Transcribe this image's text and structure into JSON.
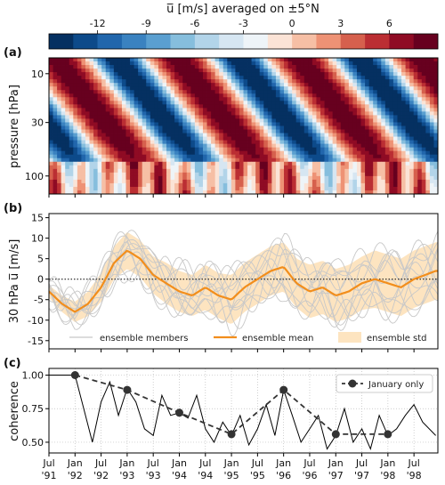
{
  "colorbar": {
    "title": "u̅ [m/s] averaged on ±5°N",
    "ticks": [
      "-12",
      "-9",
      "-6",
      "-3",
      "0",
      "3",
      "6"
    ],
    "tick_values": [
      -12,
      -9,
      -6,
      -3,
      0,
      3,
      6
    ],
    "levels": [
      -15,
      -13.5,
      -12,
      -10.5,
      -9,
      -7.5,
      -6,
      -4.5,
      -3,
      -1.5,
      0,
      1.5,
      3,
      4.5,
      6,
      7.5,
      9
    ],
    "colors": [
      "#053061",
      "#0d4a8a",
      "#2166ac",
      "#3a82c0",
      "#5a9fd0",
      "#86bedd",
      "#b2d4e9",
      "#d6e6f2",
      "#eef4f8",
      "#fbe3d6",
      "#f6bfa5",
      "#ee9275",
      "#d6604d",
      "#bb2e33",
      "#8f0b24",
      "#67001f"
    ]
  },
  "panels": {
    "a": {
      "label": "(a)",
      "ylabel": "pressure [hPa]",
      "yticks": [
        "10",
        "30",
        "100"
      ],
      "ytick_values": [
        10,
        30,
        100
      ]
    },
    "b": {
      "label": "(b)",
      "ylabel": "30 hPa u̅ [m/s]",
      "yticks": [
        "15",
        "10",
        "5",
        "0",
        "-5",
        "-10",
        "-15"
      ],
      "ytick_values": [
        15,
        10,
        5,
        0,
        -5,
        -10,
        -15
      ]
    },
    "c": {
      "label": "(c)",
      "ylabel": "coherence",
      "yticks": [
        "1.00",
        "0.75",
        "0.50"
      ],
      "ytick_values": [
        1.0,
        0.75,
        0.5
      ]
    }
  },
  "legend_b": {
    "members": "ensemble members",
    "mean": "ensemble mean",
    "std": "ensemble std"
  },
  "legend_c": {
    "january": "January only"
  },
  "xaxis": {
    "ticks": [
      {
        "top": "Jul",
        "bottom": "'91"
      },
      {
        "top": "Jan",
        "bottom": "'92"
      },
      {
        "top": "Jul",
        "bottom": "'92"
      },
      {
        "top": "Jan",
        "bottom": "'93"
      },
      {
        "top": "Jul",
        "bottom": "'93"
      },
      {
        "top": "Jan",
        "bottom": "'94"
      },
      {
        "top": "Jul",
        "bottom": "'94"
      },
      {
        "top": "Jan",
        "bottom": "'95"
      },
      {
        "top": "Jul",
        "bottom": "'95"
      },
      {
        "top": "Jan",
        "bottom": "'96"
      },
      {
        "top": "Jul",
        "bottom": "'96"
      },
      {
        "top": "Jan",
        "bottom": "'97"
      },
      {
        "top": "Jul",
        "bottom": "'97"
      },
      {
        "top": "Jan",
        "bottom": "'98"
      },
      {
        "top": "Jul",
        "bottom": "'98"
      }
    ]
  },
  "colors": {
    "mean": "#f28e1c",
    "std": "#fde4c0",
    "members": "#c8c8c8",
    "coherence": "#000000",
    "january": "#333333"
  },
  "chart_data": [
    {
      "type": "heatmap",
      "panel": "a",
      "title": "u̅ [m/s] averaged on ±5°N",
      "ylabel": "pressure [hPa]",
      "ylim": [
        150,
        7
      ],
      "yscale": "log",
      "xlim": [
        "1991-07",
        "1998-12"
      ],
      "description_of_values": "zonal wind, colour levels as in colorbar",
      "qbo_period_months": 28
    },
    {
      "type": "line",
      "panel": "b",
      "ylabel": "30 hPa u̅ [m/s]",
      "ylim": [
        -17,
        16
      ],
      "xlim": [
        "1991-07",
        "1998-12"
      ],
      "x": [
        "1991-07",
        "1991-10",
        "1992-01",
        "1992-04",
        "1992-07",
        "1992-10",
        "1993-01",
        "1993-04",
        "1993-07",
        "1993-10",
        "1994-01",
        "1994-04",
        "1994-07",
        "1994-10",
        "1995-01",
        "1995-04",
        "1995-07",
        "1995-10",
        "1996-01",
        "1996-04",
        "1996-07",
        "1996-10",
        "1997-01",
        "1997-04",
        "1997-07",
        "1997-10",
        "1998-01",
        "1998-04",
        "1998-07",
        "1998-12"
      ],
      "series": [
        {
          "name": "ensemble mean",
          "values": [
            -3,
            -6,
            -8,
            -6,
            -2,
            4,
            7,
            5,
            1,
            -1,
            -3,
            -4,
            -2,
            -4,
            -5,
            -2,
            0,
            2,
            3,
            -1,
            -3,
            -2,
            -4,
            -3,
            -1,
            0,
            -1,
            -2,
            0,
            2
          ]
        },
        {
          "name": "ensemble std",
          "values": [
            1.5,
            2,
            2.5,
            3,
            3.5,
            4,
            4.5,
            4.5,
            4.5,
            5,
            5,
            5,
            5.5,
            5.5,
            6,
            6,
            6,
            6,
            6,
            6,
            6.5,
            6.5,
            6.5,
            6.5,
            6.5,
            7,
            7,
            7,
            7,
            7
          ]
        }
      ],
      "hline": 0
    },
    {
      "type": "line",
      "panel": "c",
      "ylabel": "coherence",
      "ylim": [
        0.42,
        1.05
      ],
      "xlim": [
        "1991-07",
        "1998-12"
      ],
      "series": [
        {
          "name": "coherence",
          "x": [
            "1991-07",
            "1992-01",
            "1992-03",
            "1992-05",
            "1992-07",
            "1992-09",
            "1992-11",
            "1993-01",
            "1993-03",
            "1993-05",
            "1993-07",
            "1993-09",
            "1993-11",
            "1994-01",
            "1994-03",
            "1994-05",
            "1994-07",
            "1994-09",
            "1994-11",
            "1995-01",
            "1995-03",
            "1995-05",
            "1995-07",
            "1995-09",
            "1995-11",
            "1996-01",
            "1996-03",
            "1996-05",
            "1996-07",
            "1996-09",
            "1996-11",
            "1997-01",
            "1997-03",
            "1997-05",
            "1997-07",
            "1997-09",
            "1997-11",
            "1998-01",
            "1998-03",
            "1998-05",
            "1998-07",
            "1998-09",
            "1998-12"
          ],
          "values": [
            1.0,
            1.0,
            0.75,
            0.5,
            0.8,
            0.95,
            0.7,
            0.9,
            0.8,
            0.6,
            0.55,
            0.85,
            0.7,
            0.72,
            0.68,
            0.85,
            0.6,
            0.5,
            0.65,
            0.55,
            0.7,
            0.48,
            0.6,
            0.78,
            0.55,
            0.89,
            0.7,
            0.5,
            0.6,
            0.7,
            0.45,
            0.55,
            0.75,
            0.5,
            0.6,
            0.45,
            0.7,
            0.55,
            0.6,
            0.7,
            0.78,
            0.65,
            0.55
          ]
        },
        {
          "name": "January only",
          "x": [
            "1992-01",
            "1993-01",
            "1994-01",
            "1995-01",
            "1996-01",
            "1997-01",
            "1998-01"
          ],
          "values": [
            1.0,
            0.89,
            0.72,
            0.56,
            0.89,
            0.56,
            0.56
          ]
        }
      ]
    }
  ]
}
